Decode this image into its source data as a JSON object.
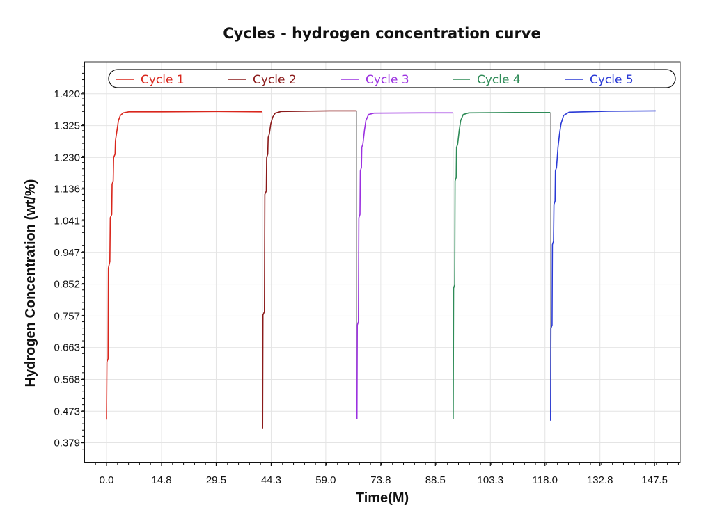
{
  "chart_data": {
    "type": "line",
    "title": "Cycles - hydrogen concentration curve",
    "xlabel": "Time(M)",
    "ylabel": "Hydrogen Concentration (wt/%)",
    "x_ticks": [
      "0.0",
      "14.8",
      "29.5",
      "44.3",
      "59.0",
      "73.8",
      "88.5",
      "103.3",
      "118.0",
      "132.8",
      "147.5"
    ],
    "y_ticks": [
      "1.420",
      "1.325",
      "1.230",
      "1.136",
      "1.041",
      "0.947",
      "0.852",
      "0.757",
      "0.663",
      "0.568",
      "0.473",
      "0.379"
    ],
    "xlim": [
      -6.0,
      154.4
    ],
    "ylim": [
      0.32,
      1.515
    ],
    "grid": true,
    "legend_position": "top",
    "series": [
      {
        "name": "Cycle 1",
        "color": "#d9261c",
        "points": [
          [
            0.0,
            0.448
          ],
          [
            0.1,
            0.62
          ],
          [
            0.4,
            0.63
          ],
          [
            0.5,
            0.9
          ],
          [
            0.9,
            0.92
          ],
          [
            1.0,
            1.05
          ],
          [
            1.4,
            1.06
          ],
          [
            1.5,
            1.15
          ],
          [
            1.8,
            1.16
          ],
          [
            1.9,
            1.23
          ],
          [
            2.3,
            1.24
          ],
          [
            2.4,
            1.28
          ],
          [
            2.8,
            1.31
          ],
          [
            3.2,
            1.34
          ],
          [
            3.7,
            1.355
          ],
          [
            4.5,
            1.363
          ],
          [
            6.0,
            1.366
          ],
          [
            15.0,
            1.366
          ],
          [
            30.0,
            1.367
          ],
          [
            41.8,
            1.366
          ]
        ]
      },
      {
        "name": "Cycle 2",
        "color": "#8b1a1a",
        "points": [
          [
            42.0,
            0.42
          ],
          [
            42.1,
            0.76
          ],
          [
            42.5,
            0.77
          ],
          [
            42.6,
            1.12
          ],
          [
            43.0,
            1.13
          ],
          [
            43.1,
            1.23
          ],
          [
            43.4,
            1.24
          ],
          [
            43.5,
            1.29
          ],
          [
            43.8,
            1.3
          ],
          [
            44.2,
            1.33
          ],
          [
            44.7,
            1.35
          ],
          [
            45.4,
            1.362
          ],
          [
            47.0,
            1.367
          ],
          [
            60.0,
            1.369
          ],
          [
            67.3,
            1.369
          ]
        ]
      },
      {
        "name": "Cycle 3",
        "color": "#9b30e0",
        "points": [
          [
            67.4,
            0.45
          ],
          [
            67.5,
            0.73
          ],
          [
            67.8,
            0.74
          ],
          [
            67.9,
            1.05
          ],
          [
            68.2,
            1.06
          ],
          [
            68.3,
            1.19
          ],
          [
            68.6,
            1.2
          ],
          [
            68.7,
            1.26
          ],
          [
            69.0,
            1.27
          ],
          [
            69.4,
            1.31
          ],
          [
            69.8,
            1.34
          ],
          [
            70.5,
            1.358
          ],
          [
            72.0,
            1.362
          ],
          [
            85.0,
            1.363
          ],
          [
            93.2,
            1.363
          ]
        ]
      },
      {
        "name": "Cycle 4",
        "color": "#2e8b57",
        "points": [
          [
            93.3,
            0.45
          ],
          [
            93.4,
            0.84
          ],
          [
            93.7,
            0.85
          ],
          [
            93.8,
            1.16
          ],
          [
            94.1,
            1.17
          ],
          [
            94.2,
            1.26
          ],
          [
            94.5,
            1.27
          ],
          [
            94.9,
            1.31
          ],
          [
            95.3,
            1.34
          ],
          [
            96.0,
            1.358
          ],
          [
            97.5,
            1.363
          ],
          [
            110.0,
            1.364
          ],
          [
            119.4,
            1.364
          ]
        ]
      },
      {
        "name": "Cycle 5",
        "color": "#2a3ad6",
        "points": [
          [
            119.5,
            0.445
          ],
          [
            119.6,
            0.72
          ],
          [
            119.9,
            0.73
          ],
          [
            120.0,
            0.97
          ],
          [
            120.3,
            0.98
          ],
          [
            120.4,
            1.09
          ],
          [
            120.7,
            1.1
          ],
          [
            120.8,
            1.19
          ],
          [
            121.1,
            1.2
          ],
          [
            121.5,
            1.26
          ],
          [
            121.9,
            1.3
          ],
          [
            122.3,
            1.33
          ],
          [
            123.0,
            1.355
          ],
          [
            124.5,
            1.365
          ],
          [
            135.0,
            1.368
          ],
          [
            147.8,
            1.369
          ]
        ]
      }
    ]
  }
}
